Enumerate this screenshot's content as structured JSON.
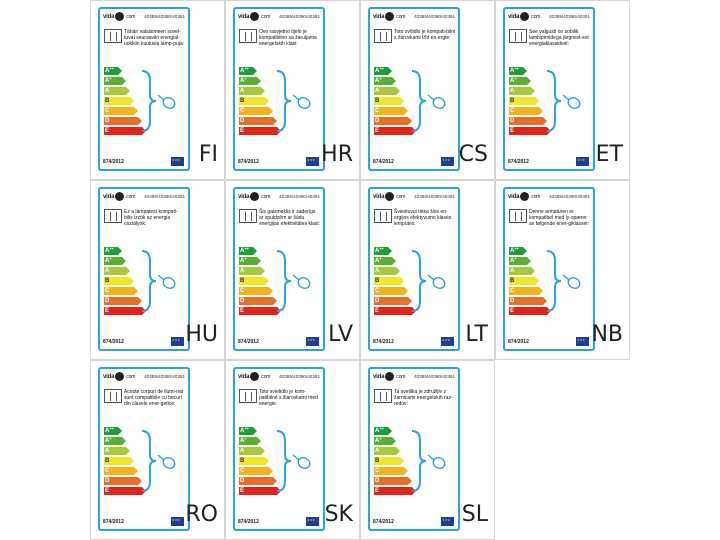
{
  "brand": {
    "name": "vida",
    "suffix": "XL",
    "com": ".com"
  },
  "product_codes": "40389/40390/40391",
  "regulation": "874/2012",
  "colors": {
    "border": "#2aa7d8",
    "bar_colors": [
      "#1e9e3a",
      "#5ab033",
      "#a7c93b",
      "#f2e628",
      "#f2b31e",
      "#e4702a",
      "#e2231a"
    ]
  },
  "scale": [
    {
      "letter": "A",
      "sup": "++"
    },
    {
      "letter": "A",
      "sup": "+"
    },
    {
      "letter": "A",
      "sup": ""
    },
    {
      "letter": "B",
      "sup": ""
    },
    {
      "letter": "C",
      "sup": ""
    },
    {
      "letter": "D",
      "sup": ""
    },
    {
      "letter": "E",
      "sup": ""
    }
  ],
  "labels": [
    {
      "lang": "FI",
      "text": "Tähän valaisimeen sovel-tuvat seuraaviin energial-uokkiin kuuluvia lamp-puja:"
    },
    {
      "lang": "HR",
      "text": "Ovo rasvjetno tijelo je kompatibilno sa žaruljama energetskih klasi:"
    },
    {
      "lang": "CS",
      "text": "Toto svítidlo je kompati-bilní s žárovkami tříd en-ergie:"
    },
    {
      "lang": "ET",
      "text": "See valgusti on sobilik lambipirnidega järgmist-est energiaklassidest:"
    },
    {
      "lang": "HU",
      "text": "Ez a lámpatest kompati-bilis izzók az energia osztályok:"
    },
    {
      "lang": "LV",
      "text": "Šis gaismeklis ir saderīgs ar spuldzēm ar šādu energijas efektivitātes klasi:"
    },
    {
      "lang": "LT",
      "text": "Šviestuvui tinka šios en-ergijos efektyvumo klasės lemputės:"
    },
    {
      "lang": "NB",
      "text": "Denne armaturen er kompatibel med ly-spærer av følgende ener-giklasser:"
    },
    {
      "lang": "RO",
      "text": "Aceste corpuri de ilumi-nat sunt compatibile cu becuri din clasele ener-getice:"
    },
    {
      "lang": "SK",
      "text": "Toto svietidlo je kom-patibilné s žiarovkami tried energie:"
    },
    {
      "lang": "SL",
      "text": "Ta svetilka je združljiv z žarnicami energetskih raz-redov:"
    }
  ]
}
